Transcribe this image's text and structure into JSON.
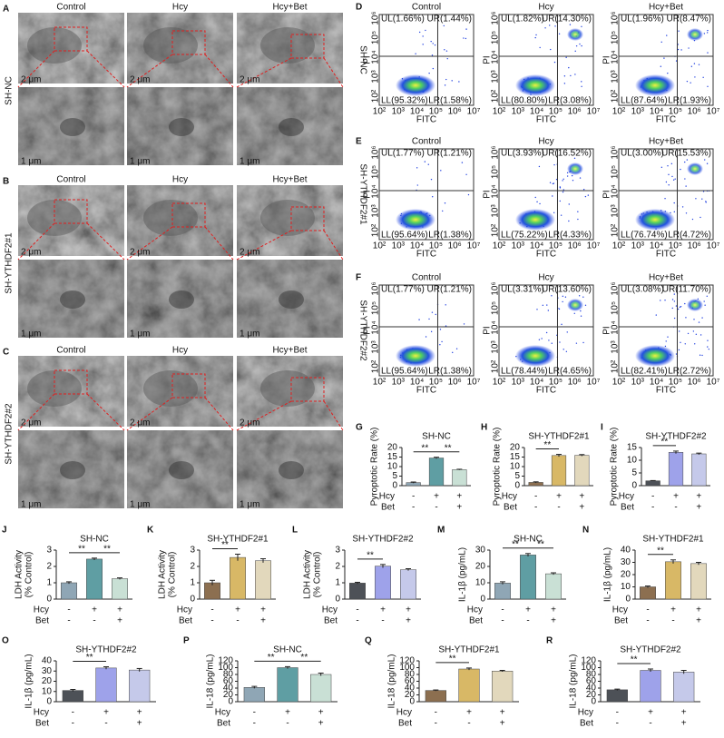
{
  "tem_panels": [
    {
      "letter": "A",
      "row_label": "SH-NC",
      "columns": [
        "Control",
        "Hcy",
        "Hcy+Bet"
      ],
      "scale_labels": [
        "2 μm",
        "1 μm"
      ]
    },
    {
      "letter": "B",
      "row_label": "SH-YTHDF2#1",
      "columns": [
        "Control",
        "Hcy",
        "Hcy+Bet"
      ],
      "scale_labels": [
        "2 μm",
        "1 μm"
      ]
    },
    {
      "letter": "C",
      "row_label": "SH-YTHDF2#2",
      "columns": [
        "Control",
        "Hcy",
        "Hcy+Bet"
      ],
      "scale_labels": [
        "2 μm",
        "1 μm"
      ]
    }
  ],
  "flow_panels": [
    {
      "letter": "D",
      "row_label": "SH-NC",
      "columns": [
        "Control",
        "Hcy",
        "Hcy+Bet"
      ],
      "x_label": "FITC",
      "y_label": "PI",
      "x_tick_labels": [
        "10²",
        "10³",
        "10⁴",
        "10⁵",
        "10⁶",
        "10⁷"
      ],
      "y_tick_labels": [
        "10²",
        "10³",
        "10⁴",
        "10⁵",
        "10⁶"
      ],
      "plots": [
        {
          "UL": "UL(1.66%)",
          "UR": "UR(1.44%)",
          "LL": "LL(95.32%)",
          "LR": "LR(1.58%)"
        },
        {
          "UL": "UL(1.82%)",
          "UR": "UR(14.30%)",
          "LL": "LL(80.80%)",
          "LR": "LR(3.08%)"
        },
        {
          "UL": "UL(1.96%)",
          "UR": "UR(8.47%)",
          "LL": "LL(87.64%)",
          "LR": "LR(1.93%)"
        }
      ]
    },
    {
      "letter": "E",
      "row_label": "SH-YTHDF2#1",
      "columns": [
        "Control",
        "Hcy",
        "Hcy+Bet"
      ],
      "x_label": "FITC",
      "y_label": "PI",
      "x_tick_labels": [
        "10²",
        "10³",
        "10⁴",
        "10⁵",
        "10⁶",
        "10⁷"
      ],
      "y_tick_labels": [
        "10²",
        "10³",
        "10⁴",
        "10⁵",
        "10⁶"
      ],
      "plots": [
        {
          "UL": "UL(1.77%)",
          "UR": "UR(1.21%)",
          "LL": "LL(95.64%)",
          "LR": "LR(1.38%)"
        },
        {
          "UL": "UL(3.93%)",
          "UR": "UR(16.52%)",
          "LL": "LL(75.22%)",
          "LR": "LR(4.33%)"
        },
        {
          "UL": "UL(3.00%)",
          "UR": "UR(15.53%)",
          "LL": "LL(76.74%)",
          "LR": "LR(4.72%)"
        }
      ]
    },
    {
      "letter": "F",
      "row_label": "SH-YTHDF2#2",
      "columns": [
        "Control",
        "Hcy",
        "Hcy+Bet"
      ],
      "x_label": "FITC",
      "y_label": "PI",
      "x_tick_labels": [
        "10²",
        "10³",
        "10⁴",
        "10⁵",
        "10⁶",
        "10⁷"
      ],
      "y_tick_labels": [
        "10²",
        "10³",
        "10⁴",
        "10⁵",
        "10⁶"
      ],
      "plots": [
        {
          "UL": "UL(1.77%)",
          "UR": "UR(1.21%)",
          "LL": "LL(95.64%)",
          "LR": "LR(1.38%)"
        },
        {
          "UL": "UL(3.31%)",
          "UR": "UR(13.60%)",
          "LL": "LL(78.44%)",
          "LR": "LR(4.65%)"
        },
        {
          "UL": "UL(3.08%)",
          "UR": "UR(11.70%)",
          "LL": "LL(82.41%)",
          "LR": "LR(2.72%)"
        }
      ]
    }
  ],
  "chart_data": [
    {
      "type": "bar",
      "letter": "G",
      "title": "SH-NC",
      "y_label": [
        "Pyroptotic Rate (%)"
      ],
      "values": [
        1.6,
        14.5,
        8.4
      ],
      "errors": [
        0.3,
        0.4,
        0.2
      ],
      "colors": [
        "#8fa6b5",
        "#5f9ea3",
        "#c9e0d5"
      ],
      "ylim": [
        0,
        20
      ],
      "yticks": [
        0,
        5,
        10,
        15,
        20
      ],
      "significance": [
        {
          "from": 0,
          "to": 1,
          "label": "**"
        },
        {
          "from": 1,
          "to": 2,
          "label": "**"
        }
      ],
      "conditions": [
        {
          "name": "Hcy",
          "signs": [
            "-",
            "+",
            "+"
          ]
        },
        {
          "name": "Bet",
          "signs": [
            "-",
            "-",
            "+"
          ]
        }
      ]
    },
    {
      "type": "bar",
      "letter": "H",
      "title": "SH-YTHDF2#1",
      "y_label": [
        "Pyroptotic Rate (%)"
      ],
      "values": [
        1.7,
        15.8,
        15.9
      ],
      "errors": [
        0.3,
        0.6,
        0.4
      ],
      "colors": [
        "#8c6f50",
        "#d8b866",
        "#e2d8bc"
      ],
      "ylim": [
        0,
        20
      ],
      "yticks": [
        0,
        5,
        10,
        15,
        20
      ],
      "significance": [
        {
          "from": 0,
          "to": 1,
          "label": "**"
        }
      ],
      "conditions": [
        {
          "name": "Hcy",
          "signs": [
            "-",
            "+",
            "+"
          ]
        },
        {
          "name": "Bet",
          "signs": [
            "-",
            "-",
            "+"
          ]
        }
      ]
    },
    {
      "type": "bar",
      "letter": "I",
      "title": "SH-YTHDF2#2",
      "y_label": [
        "Pyroptotic Rate (%)"
      ],
      "values": [
        1.9,
        13.1,
        12.5
      ],
      "errors": [
        0.1,
        0.5,
        0.3
      ],
      "colors": [
        "#4d5157",
        "#9ea2ea",
        "#c5c9ea"
      ],
      "ylim": [
        0,
        15
      ],
      "yticks": [
        0,
        5,
        10,
        15
      ],
      "significance": [
        {
          "from": 0,
          "to": 1,
          "label": "**"
        }
      ],
      "conditions": [
        {
          "name": "Hcy",
          "signs": [
            "-",
            "+",
            "+"
          ]
        },
        {
          "name": "Bet",
          "signs": [
            "-",
            "-",
            "+"
          ]
        }
      ]
    },
    {
      "type": "bar",
      "letter": "J",
      "title": "SH-NC",
      "y_label": [
        "LDH Activity",
        "(% Control)"
      ],
      "values": [
        1.0,
        2.45,
        1.25
      ],
      "errors": [
        0.06,
        0.06,
        0.05
      ],
      "colors": [
        "#8fa6b5",
        "#5f9ea3",
        "#c9e0d5"
      ],
      "ylim": [
        0,
        3
      ],
      "yticks": [
        0,
        1,
        2,
        3
      ],
      "significance": [
        {
          "from": 0,
          "to": 1,
          "label": "**"
        },
        {
          "from": 1,
          "to": 2,
          "label": "**"
        }
      ],
      "conditions": [
        {
          "name": "Hcy",
          "signs": [
            "-",
            "+",
            "+"
          ]
        },
        {
          "name": "Bet",
          "signs": [
            "-",
            "-",
            "+"
          ]
        }
      ]
    },
    {
      "type": "bar",
      "letter": "K",
      "title": "SH-YTHDF2#1",
      "y_label": [
        "LDH Activity",
        "(% Control)"
      ],
      "values": [
        1.0,
        2.55,
        2.35
      ],
      "errors": [
        0.15,
        0.2,
        0.12
      ],
      "colors": [
        "#8c6f50",
        "#d8b866",
        "#e2d8bc"
      ],
      "ylim": [
        0,
        3
      ],
      "yticks": [
        0,
        1,
        2,
        3
      ],
      "significance": [
        {
          "from": 0,
          "to": 1,
          "label": "**"
        }
      ],
      "conditions": [
        {
          "name": "Hcy",
          "signs": [
            "-",
            "+",
            "+"
          ]
        },
        {
          "name": "Bet",
          "signs": [
            "-",
            "-",
            "+"
          ]
        }
      ]
    },
    {
      "type": "bar",
      "letter": "L",
      "title": "SH-YTHDF2#2",
      "y_label": [
        "LDH Activity",
        "(% Control)"
      ],
      "values": [
        0.98,
        2.02,
        1.8
      ],
      "errors": [
        0.05,
        0.1,
        0.06
      ],
      "colors": [
        "#4d5157",
        "#9ea2ea",
        "#c5c9ea"
      ],
      "ylim": [
        0,
        3
      ],
      "yticks": [
        0,
        1,
        2,
        3
      ],
      "significance": [
        {
          "from": 0,
          "to": 1,
          "label": "**"
        }
      ],
      "conditions": [
        {
          "name": "Hcy",
          "signs": [
            "-",
            "+",
            "+"
          ]
        },
        {
          "name": "Bet",
          "signs": [
            "-",
            "-",
            "+"
          ]
        }
      ]
    },
    {
      "type": "bar",
      "letter": "M",
      "title": "SH-NC",
      "y_label": [
        "IL-1β (pg/mL)"
      ],
      "values": [
        9.8,
        27,
        15.5
      ],
      "errors": [
        0.8,
        0.9,
        0.6
      ],
      "colors": [
        "#8fa6b5",
        "#5f9ea3",
        "#c9e0d5"
      ],
      "ylim": [
        0,
        30
      ],
      "yticks": [
        0,
        10,
        20,
        30
      ],
      "significance": [
        {
          "from": 0,
          "to": 1,
          "label": "**"
        },
        {
          "from": 1,
          "to": 2,
          "label": "**"
        }
      ],
      "conditions": [
        {
          "name": "Hcy",
          "signs": [
            "-",
            "+",
            "+"
          ]
        },
        {
          "name": "Bet",
          "signs": [
            "-",
            "-",
            "+"
          ]
        }
      ]
    },
    {
      "type": "bar",
      "letter": "N",
      "title": "SH-YTHDF2#1",
      "y_label": [
        "IL-1β (pg/mL)"
      ],
      "values": [
        10,
        30.5,
        29
      ],
      "errors": [
        0.7,
        1.5,
        1
      ],
      "colors": [
        "#8c6f50",
        "#d8b866",
        "#e2d8bc"
      ],
      "ylim": [
        0,
        40
      ],
      "yticks": [
        0,
        10,
        20,
        30,
        40
      ],
      "significance": [
        {
          "from": 0,
          "to": 1,
          "label": "**"
        }
      ],
      "conditions": [
        {
          "name": "Hcy",
          "signs": [
            "-",
            "+",
            "+"
          ]
        },
        {
          "name": "Bet",
          "signs": [
            "-",
            "-",
            "+"
          ]
        }
      ]
    },
    {
      "type": "bar",
      "letter": "O",
      "title": "SH-YTHDF2#2",
      "y_label": [
        "IL-1β (pg/mL)"
      ],
      "values": [
        11,
        33,
        31
      ],
      "errors": [
        1,
        1.2,
        1.5
      ],
      "colors": [
        "#4d5157",
        "#9ea2ea",
        "#c5c9ea"
      ],
      "ylim": [
        0,
        40
      ],
      "yticks": [
        0,
        10,
        20,
        30,
        40
      ],
      "significance": [
        {
          "from": 0,
          "to": 1,
          "label": "**"
        }
      ],
      "conditions": [
        {
          "name": "Hcy",
          "signs": [
            "-",
            "+",
            "+"
          ]
        },
        {
          "name": "Bet",
          "signs": [
            "-",
            "-",
            "+"
          ]
        }
      ]
    },
    {
      "type": "bar",
      "letter": "P",
      "title": "SH-NC",
      "y_label": [
        "IL-18 (pg/mL)"
      ],
      "values": [
        42,
        100,
        80
      ],
      "errors": [
        3,
        3,
        4
      ],
      "colors": [
        "#8fa6b5",
        "#5f9ea3",
        "#c9e0d5"
      ],
      "ylim": [
        0,
        120
      ],
      "yticks": [
        0,
        20,
        40,
        60,
        80,
        100,
        120
      ],
      "significance": [
        {
          "from": 0,
          "to": 1,
          "label": "**"
        },
        {
          "from": 1,
          "to": 2,
          "label": "**"
        }
      ],
      "conditions": [
        {
          "name": "Hcy",
          "signs": [
            "-",
            "+",
            "+"
          ]
        },
        {
          "name": "Bet",
          "signs": [
            "-",
            "-",
            "+"
          ]
        }
      ]
    },
    {
      "type": "bar",
      "letter": "Q",
      "title": "SH-YTHDF2#1",
      "y_label": [
        "IL-18 (pg/mL)"
      ],
      "values": [
        33,
        96,
        90
      ],
      "errors": [
        1.5,
        3,
        2
      ],
      "colors": [
        "#8c6f50",
        "#d8b866",
        "#e2d8bc"
      ],
      "ylim": [
        0,
        120
      ],
      "yticks": [
        0,
        20,
        40,
        60,
        80,
        100,
        120
      ],
      "significance": [
        {
          "from": 0,
          "to": 1,
          "label": "**"
        }
      ],
      "conditions": [
        {
          "name": "Hcy",
          "signs": [
            "-",
            "+",
            "+"
          ]
        },
        {
          "name": "Bet",
          "signs": [
            "-",
            "-",
            "+"
          ]
        }
      ]
    },
    {
      "type": "bar",
      "letter": "R",
      "title": "SH-YTHDF2#2",
      "y_label": [
        "IL-18 (pg/mL)"
      ],
      "values": [
        35,
        92,
        87
      ],
      "errors": [
        2,
        4,
        5
      ],
      "colors": [
        "#4d5157",
        "#9ea2ea",
        "#c5c9ea"
      ],
      "ylim": [
        0,
        120
      ],
      "yticks": [
        0,
        20,
        40,
        60,
        80,
        100,
        120
      ],
      "significance": [
        {
          "from": 0,
          "to": 1,
          "label": "**"
        }
      ],
      "conditions": [
        {
          "name": "Hcy",
          "signs": [
            "-",
            "+",
            "+"
          ]
        },
        {
          "name": "Bet",
          "signs": [
            "-",
            "-",
            "+"
          ]
        }
      ]
    }
  ]
}
